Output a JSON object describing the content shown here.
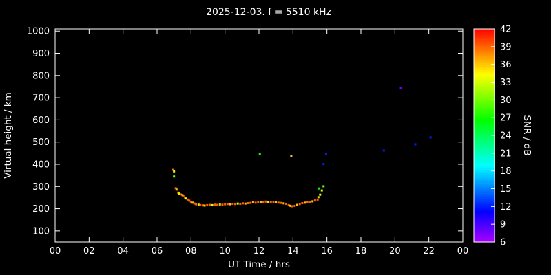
{
  "title": "2025-12-03. f = 5510 kHz",
  "chart_data": {
    "type": "scatter",
    "title": "2025-12-03. f = 5510 kHz",
    "xlabel": "UT Time / hrs",
    "ylabel": "Virtual height / km",
    "xlim": [
      0,
      24
    ],
    "ylim": [
      50,
      1010
    ],
    "grid": false,
    "background_color": "#000000",
    "axis_color": "#ffffff",
    "x_tick_hours": [
      0,
      2,
      4,
      6,
      8,
      10,
      12,
      14,
      16,
      18,
      20,
      22,
      24
    ],
    "x_tick_labels": [
      "00",
      "02",
      "04",
      "06",
      "08",
      "10",
      "12",
      "14",
      "16",
      "18",
      "20",
      "22",
      "00"
    ],
    "y_ticks": [
      1000,
      900,
      800,
      700,
      600,
      500,
      400,
      300,
      200,
      100
    ],
    "colorbar": {
      "label": "SNR / dB",
      "min": 6,
      "max": 42,
      "ticks": [
        42,
        39,
        36,
        33,
        30,
        27,
        24,
        21,
        18,
        15,
        12,
        9,
        6
      ],
      "top_color": "#ff0000",
      "bottom_color": "#8800ff",
      "style": "rainbow: red (42) through orange, yellow, green, cyan, blue to violet (6)"
    },
    "points_format": [
      "ut_time_hours",
      "virtual_height_km",
      "snr_db"
    ],
    "points": [
      [
        6.95,
        375,
        39
      ],
      [
        7.0,
        368,
        33
      ],
      [
        7.0,
        345,
        30
      ],
      [
        7.1,
        292,
        39
      ],
      [
        7.15,
        286,
        36
      ],
      [
        7.25,
        272,
        39
      ],
      [
        7.3,
        268,
        33
      ],
      [
        7.4,
        264,
        39
      ],
      [
        7.5,
        261,
        36
      ],
      [
        7.55,
        256,
        39
      ],
      [
        7.65,
        249,
        39
      ],
      [
        7.7,
        246,
        33
      ],
      [
        7.8,
        241,
        39
      ],
      [
        7.9,
        236,
        39
      ],
      [
        8.0,
        231,
        39
      ],
      [
        8.1,
        227,
        36
      ],
      [
        8.2,
        223,
        39
      ],
      [
        8.3,
        220,
        39
      ],
      [
        8.45,
        218,
        33
      ],
      [
        8.55,
        216,
        39
      ],
      [
        8.7,
        215,
        39
      ],
      [
        8.8,
        214,
        36
      ],
      [
        8.95,
        216,
        39
      ],
      [
        9.1,
        217,
        39
      ],
      [
        9.25,
        216,
        33
      ],
      [
        9.4,
        218,
        39
      ],
      [
        9.55,
        217,
        39
      ],
      [
        9.7,
        219,
        36
      ],
      [
        9.85,
        218,
        39
      ],
      [
        10.0,
        220,
        39
      ],
      [
        10.15,
        221,
        39
      ],
      [
        10.3,
        220,
        36
      ],
      [
        10.45,
        222,
        39
      ],
      [
        10.6,
        221,
        39
      ],
      [
        10.75,
        223,
        33
      ],
      [
        10.9,
        222,
        39
      ],
      [
        11.05,
        224,
        39
      ],
      [
        11.2,
        223,
        36
      ],
      [
        11.35,
        225,
        39
      ],
      [
        11.5,
        226,
        39
      ],
      [
        11.65,
        228,
        36
      ],
      [
        11.8,
        227,
        39
      ],
      [
        11.95,
        229,
        39
      ],
      [
        12.05,
        447,
        27
      ],
      [
        12.1,
        230,
        36
      ],
      [
        12.25,
        231,
        39
      ],
      [
        12.4,
        232,
        39
      ],
      [
        12.55,
        231,
        33
      ],
      [
        12.7,
        230,
        39
      ],
      [
        12.85,
        229,
        39
      ],
      [
        13.0,
        228,
        36
      ],
      [
        13.15,
        227,
        39
      ],
      [
        13.3,
        226,
        39
      ],
      [
        13.45,
        224,
        36
      ],
      [
        13.6,
        222,
        39
      ],
      [
        13.75,
        216,
        39
      ],
      [
        13.85,
        213,
        36
      ],
      [
        13.9,
        436,
        36
      ],
      [
        13.95,
        211,
        39
      ],
      [
        14.1,
        213,
        39
      ],
      [
        14.25,
        217,
        36
      ],
      [
        14.4,
        221,
        39
      ],
      [
        14.55,
        225,
        39
      ],
      [
        14.7,
        227,
        36
      ],
      [
        14.85,
        229,
        39
      ],
      [
        15.0,
        231,
        39
      ],
      [
        15.15,
        233,
        36
      ],
      [
        15.3,
        237,
        39
      ],
      [
        15.45,
        241,
        39
      ],
      [
        15.5,
        252,
        36
      ],
      [
        15.55,
        291,
        27
      ],
      [
        15.6,
        263,
        33
      ],
      [
        15.7,
        282,
        33
      ],
      [
        15.8,
        301,
        30
      ],
      [
        15.8,
        401,
        12
      ],
      [
        15.95,
        446,
        12
      ],
      [
        19.35,
        462,
        12
      ],
      [
        20.35,
        745,
        8
      ],
      [
        21.2,
        490,
        12
      ],
      [
        22.1,
        521,
        12
      ]
    ]
  }
}
